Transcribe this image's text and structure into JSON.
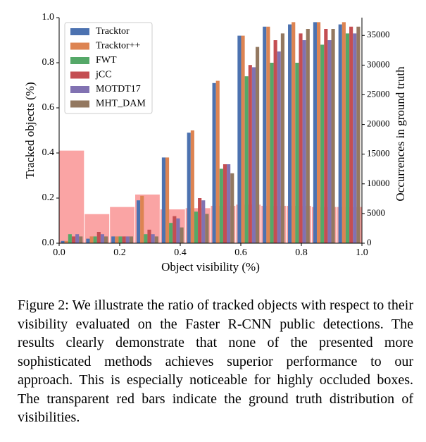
{
  "chart_data": {
    "type": "bar",
    "xlabel": "Object visibility (%)",
    "ylabel": "Tracked objects (%)",
    "y2label": "Occurrences in ground truth",
    "x": [
      0.0417,
      0.125,
      0.2083,
      0.2917,
      0.375,
      0.4583,
      0.5417,
      0.625,
      0.7083,
      0.7917,
      0.875,
      0.9583
    ],
    "series": [
      {
        "name": "Tracktor",
        "color": "#4c72b0",
        "values": [
          0.01,
          0.02,
          0.03,
          0.19,
          0.38,
          0.49,
          0.71,
          0.92,
          0.96,
          0.97,
          0.98,
          0.97
        ]
      },
      {
        "name": "Tracktor++",
        "color": "#dd8452",
        "values": [
          0.01,
          0.03,
          0.03,
          0.21,
          0.38,
          0.5,
          0.72,
          0.92,
          0.96,
          0.98,
          0.98,
          0.98
        ]
      },
      {
        "name": "FWT",
        "color": "#55a868",
        "values": [
          0.04,
          0.03,
          0.03,
          0.04,
          0.09,
          0.14,
          0.33,
          0.74,
          0.8,
          0.8,
          0.88,
          0.93
        ]
      },
      {
        "name": "jCC",
        "color": "#c44e52",
        "values": [
          0.03,
          0.05,
          0.03,
          0.06,
          0.12,
          0.2,
          0.35,
          0.79,
          0.9,
          0.93,
          0.95,
          0.96
        ]
      },
      {
        "name": "MOTDT17",
        "color": "#8172b2",
        "values": [
          0.04,
          0.04,
          0.03,
          0.04,
          0.11,
          0.19,
          0.35,
          0.78,
          0.85,
          0.9,
          0.9,
          0.93
        ]
      },
      {
        "name": "MHT_DAM",
        "color": "#937860",
        "values": [
          0.03,
          0.03,
          0.03,
          0.03,
          0.07,
          0.13,
          0.31,
          0.87,
          0.93,
          0.95,
          0.95,
          0.96
        ]
      }
    ],
    "histogram": {
      "axis": "y2",
      "color": "#f99a9a",
      "bins": [
        0,
        0.0833,
        0.1667,
        0.25,
        0.3333,
        0.4167,
        0.5,
        0.5833,
        0.6667,
        0.75,
        0.8333,
        0.9167,
        1
      ],
      "counts": [
        15600,
        4900,
        6100,
        8200,
        5700,
        5900,
        6300,
        6500,
        6300,
        6300,
        6100,
        6100
      ]
    },
    "xlim": [
      0,
      1
    ],
    "xticks": [
      {
        "value": 0,
        "label": "0.0"
      },
      {
        "value": 0.2,
        "label": "0.2"
      },
      {
        "value": 0.4,
        "label": "0.4"
      },
      {
        "value": 0.6,
        "label": "0.6"
      },
      {
        "value": 0.8,
        "label": "0.8"
      },
      {
        "value": 1,
        "label": "1.0"
      }
    ],
    "ylim": [
      0,
      1
    ],
    "yticks": [
      {
        "value": 0,
        "label": "0.0"
      },
      {
        "value": 0.2,
        "label": "0.2"
      },
      {
        "value": 0.4,
        "label": "0.4"
      },
      {
        "value": 0.6,
        "label": "0.6"
      },
      {
        "value": 0.8,
        "label": "0.8"
      },
      {
        "value": 1,
        "label": "1.0"
      }
    ],
    "y2lim": [
      0,
      38000
    ],
    "y2ticks": [
      0,
      5000,
      10000,
      15000,
      20000,
      25000,
      30000,
      35000
    ],
    "legend": "upper left"
  },
  "caption": "Figure 2: We illustrate the ratio of tracked objects with respect to their visibility evaluated on the Faster R-CNN public detections. The results clearly demonstrate that none of the presented more sophisticated methods achieves superior performance to our approach. This is especially noticeable for highly occluded boxes. The transparent red bars indicate the ground truth distribution of visibilities."
}
